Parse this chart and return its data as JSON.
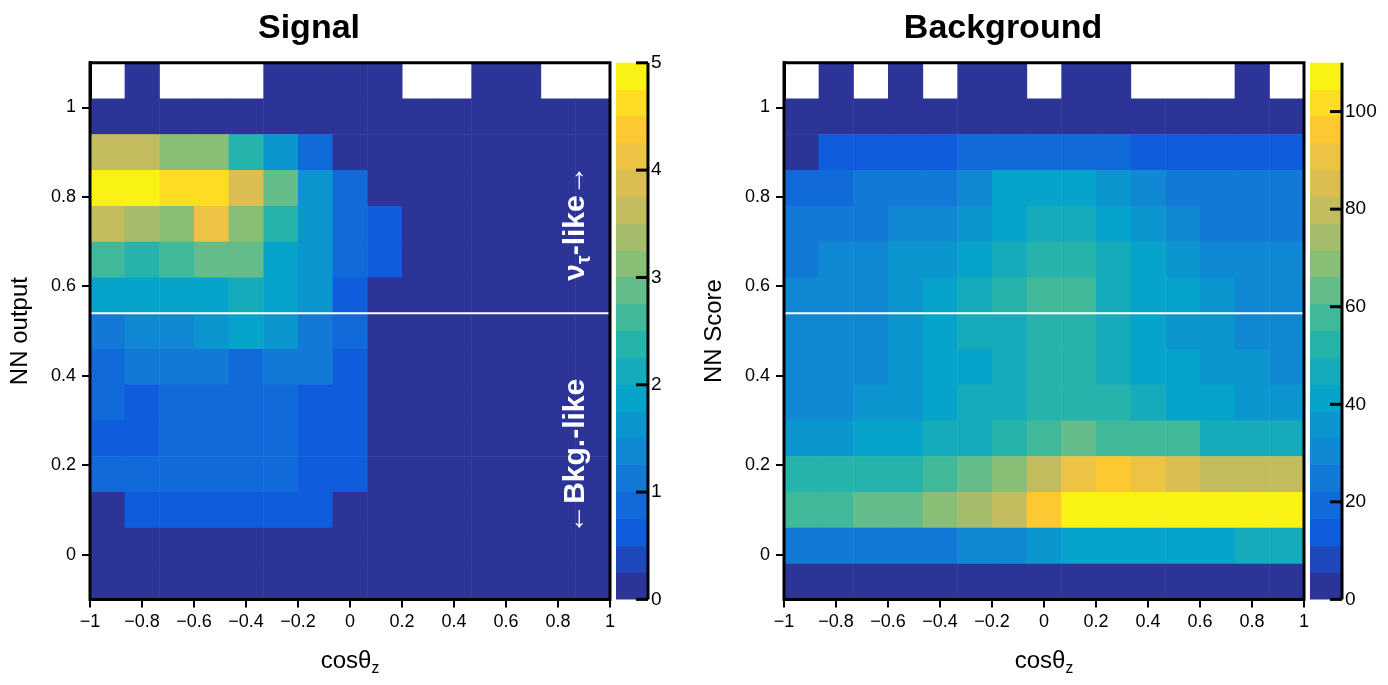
{
  "chart_data": [
    {
      "type": "heatmap",
      "title": "Signal",
      "xlabel": "cosθ$_{z}$",
      "ylabel": "NN output",
      "xlim": [
        -1,
        1
      ],
      "xticks": [
        -1,
        -0.8,
        -0.6,
        -0.4,
        -0.2,
        0,
        0.2,
        0.4,
        0.6,
        0.8,
        1
      ],
      "ylim": [
        -0.1,
        1.1
      ],
      "yticks": [
        0,
        0.2,
        0.4,
        0.6,
        0.8,
        1
      ],
      "clim": [
        0,
        5
      ],
      "cticks": [
        0,
        1,
        2,
        3,
        4,
        5
      ],
      "ref_lines": [
        {
          "axis": "y",
          "value": 0.54,
          "color": "#ffffff"
        }
      ],
      "annotations": [
        "ν$_{τ}$-like→",
        "←Bkg.-like"
      ],
      "cells": [
        [
          null,
          0.1,
          null,
          null,
          null,
          0.1,
          0.1,
          0.1,
          0.1,
          null,
          null,
          0.1,
          0.1,
          null,
          null
        ],
        [
          0.1,
          0.1,
          0.1,
          0.1,
          0.1,
          0.1,
          0.1,
          0.1,
          0.1,
          0.1,
          0.1,
          0.1,
          0.1,
          0.1,
          0.1
        ],
        [
          3.6,
          3.6,
          3.1,
          3.1,
          2.3,
          1.5,
          0.8,
          0.1,
          0.1,
          0.1,
          0.1,
          0.1,
          0.1,
          0.1,
          0.1
        ],
        [
          4.9,
          4.9,
          4.6,
          4.6,
          3.8,
          2.8,
          1.5,
          0.8,
          0.1,
          0.1,
          0.1,
          0.1,
          0.1,
          0.1,
          0.1
        ],
        [
          3.6,
          3.4,
          3.1,
          4.2,
          3.1,
          2.3,
          1.5,
          0.9,
          0.6,
          0.1,
          0.1,
          0.1,
          0.1,
          0.1,
          0.1
        ],
        [
          2.6,
          2.4,
          2.6,
          2.8,
          2.8,
          1.9,
          1.5,
          0.9,
          0.6,
          0.1,
          0.1,
          0.1,
          0.1,
          0.1,
          0.1
        ],
        [
          1.9,
          1.9,
          1.9,
          1.9,
          2.1,
          1.9,
          1.5,
          0.6,
          0.1,
          0.1,
          0.1,
          0.1,
          0.1,
          0.1,
          0.1
        ],
        [
          1.1,
          1.3,
          1.3,
          1.5,
          1.9,
          1.5,
          1.0,
          0.9,
          0.1,
          0.1,
          0.1,
          0.1,
          0.1,
          0.1,
          0.1
        ],
        [
          0.9,
          1.1,
          1.1,
          1.1,
          0.9,
          1.1,
          1.1,
          0.6,
          0.1,
          0.1,
          0.1,
          0.1,
          0.1,
          0.1,
          0.1
        ],
        [
          0.9,
          0.6,
          0.9,
          0.9,
          0.9,
          0.9,
          0.6,
          0.6,
          0.1,
          0.1,
          0.1,
          0.1,
          0.1,
          0.1,
          0.1
        ],
        [
          0.6,
          0.6,
          0.9,
          0.9,
          0.9,
          0.9,
          0.6,
          0.6,
          0.1,
          0.1,
          0.1,
          0.1,
          0.1,
          0.1,
          0.1
        ],
        [
          0.9,
          0.9,
          0.9,
          0.9,
          0.9,
          0.9,
          0.6,
          0.6,
          0.1,
          0.1,
          0.1,
          0.1,
          0.1,
          0.1,
          0.1
        ],
        [
          0.1,
          0.6,
          0.6,
          0.6,
          0.6,
          0.6,
          0.6,
          0.1,
          0.1,
          0.1,
          0.1,
          0.1,
          0.1,
          0.1,
          0.1
        ],
        [
          0.1,
          0.1,
          0.1,
          0.1,
          0.1,
          0.1,
          0.1,
          0.1,
          0.1,
          0.1,
          0.1,
          0.1,
          0.1,
          0.1,
          0.1
        ],
        [
          0.1,
          0.1,
          0.1,
          0.1,
          0.1,
          0.1,
          0.1,
          0.1,
          0.1,
          0.1,
          0.1,
          0.1,
          0.1,
          0.1,
          0.1
        ]
      ]
    },
    {
      "type": "heatmap",
      "title": "Background",
      "xlabel": "cosθ$_{z}$",
      "ylabel": "NN Score",
      "xlim": [
        -1,
        1
      ],
      "xticks": [
        -1,
        -0.8,
        -0.6,
        -0.4,
        -0.2,
        0,
        0.2,
        0.4,
        0.6,
        0.8,
        1
      ],
      "ylim": [
        -0.1,
        1.1
      ],
      "yticks": [
        0,
        0.2,
        0.4,
        0.6,
        0.8,
        1
      ],
      "clim": [
        0,
        110
      ],
      "cticks": [
        0,
        20,
        40,
        60,
        80,
        100
      ],
      "ref_lines": [
        {
          "axis": "y",
          "value": 0.54,
          "color": "#ffffff"
        }
      ],
      "cells": [
        [
          null,
          2,
          null,
          2,
          null,
          2,
          2,
          null,
          2,
          2,
          null,
          null,
          null,
          2,
          null
        ],
        [
          2,
          2,
          2,
          2,
          2,
          2,
          2,
          2,
          2,
          2,
          2,
          2,
          2,
          2,
          2
        ],
        [
          2,
          13,
          13,
          13,
          13,
          19,
          19,
          19,
          19,
          19,
          13,
          13,
          13,
          13,
          13
        ],
        [
          20,
          20,
          22,
          22,
          22,
          28,
          40,
          40,
          40,
          33,
          28,
          22,
          22,
          22,
          22
        ],
        [
          22,
          22,
          22,
          28,
          28,
          33,
          40,
          44,
          44,
          40,
          33,
          28,
          22,
          22,
          22
        ],
        [
          22,
          28,
          28,
          33,
          33,
          40,
          45,
          50,
          50,
          45,
          40,
          33,
          28,
          28,
          28
        ],
        [
          28,
          28,
          28,
          33,
          40,
          45,
          50,
          56,
          56,
          45,
          40,
          40,
          33,
          28,
          28
        ],
        [
          28,
          28,
          28,
          33,
          40,
          45,
          45,
          50,
          50,
          45,
          40,
          33,
          33,
          28,
          28
        ],
        [
          28,
          28,
          28,
          33,
          40,
          40,
          45,
          50,
          50,
          45,
          40,
          40,
          33,
          33,
          28
        ],
        [
          28,
          28,
          33,
          33,
          40,
          45,
          45,
          50,
          50,
          50,
          45,
          40,
          40,
          33,
          33
        ],
        [
          33,
          33,
          40,
          40,
          45,
          45,
          50,
          55,
          61,
          57,
          57,
          55,
          45,
          45,
          45
        ],
        [
          50,
          50,
          50,
          50,
          55,
          61,
          68,
          79,
          92,
          97,
          92,
          84,
          79,
          79,
          79
        ],
        [
          56,
          56,
          61,
          61,
          68,
          74,
          79,
          97,
          105,
          108,
          108,
          108,
          105,
          105,
          105
        ],
        [
          22,
          22,
          22,
          22,
          22,
          28,
          28,
          33,
          40,
          40,
          40,
          40,
          40,
          45,
          45
        ],
        [
          2,
          2,
          2,
          2,
          2,
          2,
          2,
          2,
          2,
          2,
          2,
          2,
          2,
          2,
          2
        ]
      ]
    }
  ]
}
